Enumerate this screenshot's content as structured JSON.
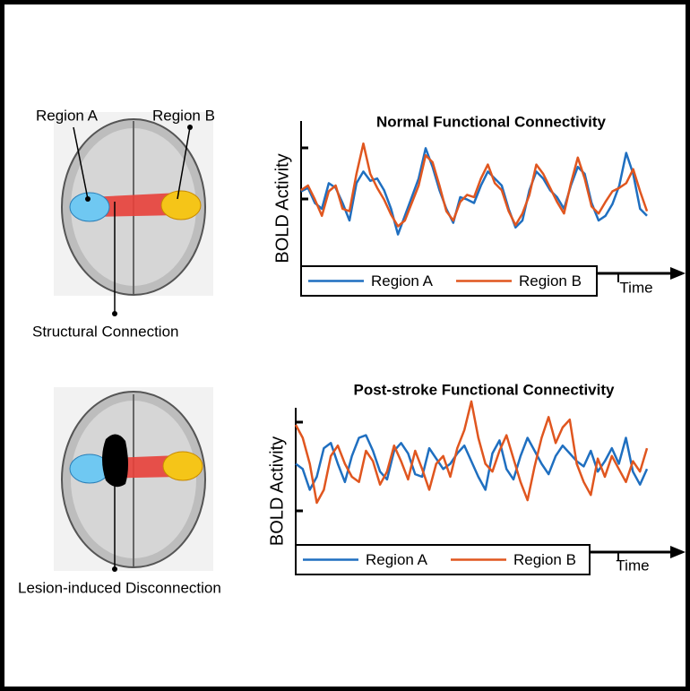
{
  "panels": [
    {
      "labels": {
        "region_a": "Region A",
        "region_b": "Region B",
        "connection": "Structural Connection"
      },
      "chart": {
        "type": "line",
        "title": "Normal Functional Connectivity",
        "y_label": "BOLD Activity",
        "x_label": "Time",
        "series": [
          {
            "name": "Region A",
            "color": "#1f6fc0",
            "values": [
              55,
              58,
              45,
              40,
              62,
              58,
              45,
              30,
              62,
              72,
              64,
              66,
              56,
              40,
              18,
              34,
              50,
              66,
              92,
              76,
              56,
              40,
              28,
              50,
              48,
              45,
              60,
              72,
              66,
              60,
              40,
              24,
              30,
              56,
              72,
              66,
              56,
              50,
              40,
              60,
              76,
              70,
              45,
              30,
              34,
              44,
              60,
              88,
              70,
              40,
              34
            ]
          },
          {
            "name": "Region B",
            "color": "#e0561f",
            "values": [
              56,
              60,
              48,
              34,
              55,
              60,
              40,
              38,
              70,
              96,
              70,
              58,
              48,
              35,
              25,
              30,
              45,
              60,
              86,
              80,
              60,
              38,
              30,
              46,
              52,
              50,
              66,
              78,
              62,
              56,
              38,
              26,
              36,
              52,
              78,
              70,
              58,
              46,
              36,
              62,
              84,
              66,
              42,
              36,
              46,
              55,
              58,
              62,
              74,
              55,
              38
            ]
          }
        ]
      }
    },
    {
      "labels": {
        "connection": "Lesion-induced Disconnection"
      },
      "chart": {
        "type": "line",
        "title": "Post-stroke Functional Connectivity",
        "y_label": "BOLD Activity",
        "x_label": "Time",
        "series": [
          {
            "name": "Region A",
            "color": "#1f6fc0",
            "values": [
              50,
              46,
              30,
              40,
              62,
              66,
              50,
              36,
              56,
              70,
              72,
              60,
              44,
              38,
              60,
              66,
              58,
              42,
              40,
              62,
              54,
              46,
              50,
              58,
              64,
              52,
              40,
              30,
              58,
              68,
              46,
              38,
              56,
              70,
              60,
              50,
              42,
              56,
              64,
              58,
              52,
              48,
              60,
              44,
              52,
              62,
              50,
              70,
              44,
              34,
              46
            ]
          },
          {
            "name": "Region B",
            "color": "#e0561f",
            "values": [
              80,
              70,
              50,
              20,
              30,
              56,
              64,
              50,
              40,
              36,
              60,
              52,
              34,
              44,
              64,
              52,
              38,
              60,
              46,
              30,
              50,
              56,
              40,
              62,
              76,
              98,
              70,
              50,
              44,
              60,
              72,
              54,
              36,
              22,
              48,
              70,
              86,
              66,
              78,
              84,
              50,
              36,
              26,
              54,
              40,
              56,
              46,
              36,
              52,
              44,
              62
            ]
          }
        ]
      }
    }
  ]
}
